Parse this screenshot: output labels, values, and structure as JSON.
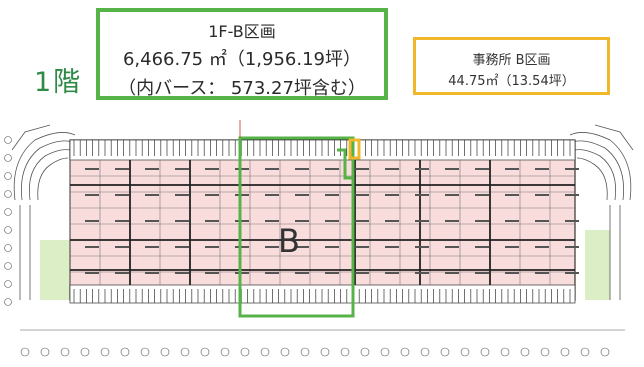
{
  "floor_label": "1階",
  "main_box": {
    "line1": "1F-B区画",
    "line2": "6,466.75 ㎡（1,956.19坪）",
    "line3": "（内バース： 573.27坪含む）"
  },
  "office_box": {
    "line1": "事務所 B区画",
    "line2": "44.75㎡（13.54坪）"
  },
  "section_label": "B",
  "colors": {
    "highlight_green": "#56b347",
    "office_yellow": "#f0b72a",
    "floor_pink": "#f9dcdc",
    "outside_green": "#dbeec5"
  }
}
